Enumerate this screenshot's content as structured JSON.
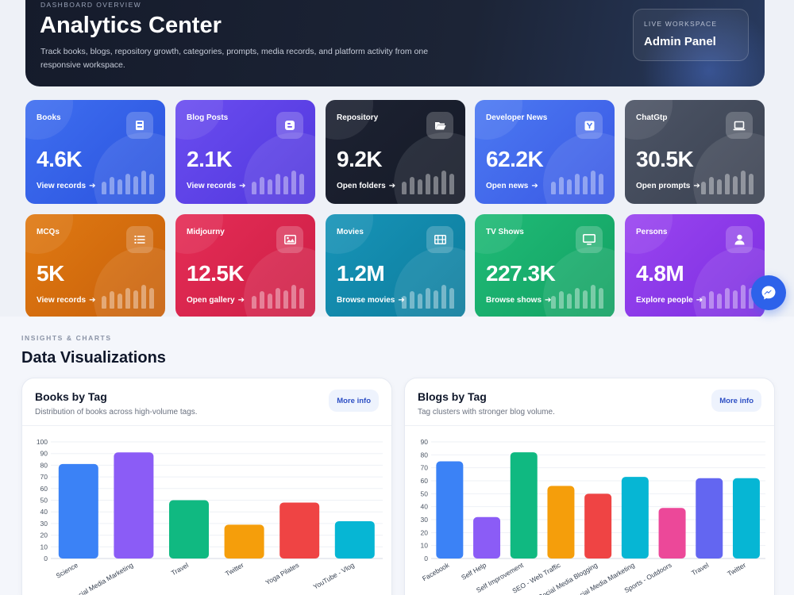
{
  "hero": {
    "eyebrow": "DASHBOARD OVERVIEW",
    "title": "Analytics Center",
    "description": "Track books, blogs, repository growth, categories, prompts, media records, and platform activity from one responsive workspace.",
    "workspace_label": "LIVE WORKSPACE",
    "workspace_value": "Admin Panel"
  },
  "cards": [
    {
      "title": "Books",
      "value": "4.6K",
      "link": "View records",
      "icon": "book-icon",
      "color": "#3f6ff0"
    },
    {
      "title": "Blog Posts",
      "value": "2.1K",
      "link": "View records",
      "icon": "blogger-icon",
      "color": "#6b4df0"
    },
    {
      "title": "Repository",
      "value": "9.2K",
      "link": "Open folders",
      "icon": "folder-open-icon",
      "color": "#1d2232"
    },
    {
      "title": "Developer News",
      "value": "62.2K",
      "link": "Open news",
      "icon": "hacker-news-icon",
      "color": "#4c7af2"
    },
    {
      "title": "ChatGtp",
      "value": "30.5K",
      "link": "Open prompts",
      "icon": "laptop-icon",
      "color": "#4d5566"
    },
    {
      "title": "MCQs",
      "value": "5K",
      "link": "View records",
      "icon": "list-icon",
      "color": "#e07a12"
    },
    {
      "title": "Midjourny",
      "value": "12.5K",
      "link": "Open gallery",
      "icon": "image-icon",
      "color": "#e52d56"
    },
    {
      "title": "Movies",
      "value": "1.2M",
      "link": "Browse movies",
      "icon": "film-icon",
      "color": "#1794b8"
    },
    {
      "title": "TV Shows",
      "value": "227.3K",
      "link": "Browse shows",
      "icon": "tv-icon",
      "color": "#20bb77"
    },
    {
      "title": "Persons",
      "value": "4.8M",
      "link": "Explore people",
      "icon": "user-icon",
      "color": "#9a45f0"
    }
  ],
  "fab": {
    "icon": "messenger-icon"
  },
  "insights": {
    "eyebrow": "INSIGHTS & CHARTS",
    "title": "Data Visualizations"
  },
  "panels": [
    {
      "title": "Books by Tag",
      "subtitle": "Distribution of books across high-volume tags.",
      "button": "More info"
    },
    {
      "title": "Blogs by Tag",
      "subtitle": "Tag clusters with stronger blog volume.",
      "button": "More info"
    }
  ],
  "chart_data": [
    {
      "type": "bar",
      "title": "Books by Tag",
      "categories": [
        "Science",
        "Social Media Marketing",
        "Travel",
        "Twitter",
        "Yoga Pilates",
        "YouTube - Vlog"
      ],
      "values": [
        81,
        91,
        50,
        29,
        48,
        32
      ],
      "colors": [
        "#3b82f6",
        "#8b5cf6",
        "#10b981",
        "#f59e0b",
        "#ef4444",
        "#06b6d4"
      ],
      "ylim": [
        0,
        100
      ],
      "yticks": [
        0,
        10,
        20,
        30,
        40,
        50,
        60,
        70,
        80,
        90,
        100
      ],
      "grid": true
    },
    {
      "type": "bar",
      "title": "Blogs by Tag",
      "categories": [
        "Facebook",
        "Self Help",
        "Self Improvement",
        "SEO - Web Traffic",
        "Social Media Blogging",
        "Social Media Marketing",
        "Sports - Outdoors",
        "Travel",
        "Twitter"
      ],
      "values": [
        75,
        32,
        82,
        56,
        50,
        63,
        39,
        62,
        62
      ],
      "colors": [
        "#3b82f6",
        "#8b5cf6",
        "#10b981",
        "#f59e0b",
        "#ef4444",
        "#06b6d4",
        "#ec4899",
        "#6366f1",
        "#06b6d4"
      ],
      "ylim": [
        0,
        90
      ],
      "yticks": [
        0,
        10,
        20,
        30,
        40,
        50,
        60,
        70,
        80,
        90
      ],
      "grid": true
    }
  ]
}
